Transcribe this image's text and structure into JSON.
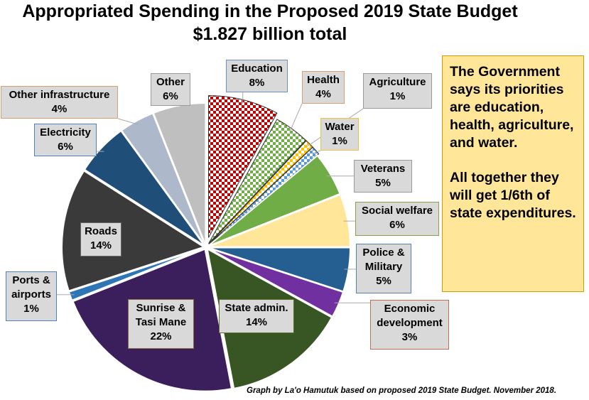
{
  "chart_data": {
    "type": "pie",
    "title": "Appropriated Spending in the Proposed 2019 State Budget",
    "subtitle": "$1.827 billion total",
    "slices": [
      {
        "label": "Education",
        "pct": "8%",
        "value": 8,
        "color": "#c00000",
        "pattern": "checker"
      },
      {
        "label": "Health",
        "pct": "4%",
        "value": 4,
        "color": "#70ad47",
        "pattern": "checker"
      },
      {
        "label": "Agriculture",
        "pct": "1%",
        "value": 1,
        "color": "#ffc000",
        "pattern": "checker"
      },
      {
        "label": "Water",
        "pct": "1%",
        "value": 1,
        "color": "#5b9bd5",
        "pattern": "checker"
      },
      {
        "label": "Veterans",
        "pct": "5%",
        "value": 5,
        "color": "#70ad47"
      },
      {
        "label": "Social welfare",
        "pct": "6%",
        "value": 6,
        "color": "#ffe699"
      },
      {
        "label": "Police & Military",
        "pct": "5%",
        "value": 5,
        "color": "#255e91"
      },
      {
        "label": "Economic development",
        "pct": "3%",
        "value": 3,
        "color": "#7030a0"
      },
      {
        "label": "State admin.",
        "pct": "14%",
        "value": 14,
        "color": "#375623"
      },
      {
        "label": "Sunrise & Tasi Mane",
        "pct": "22%",
        "value": 22,
        "color": "#3b1f5c"
      },
      {
        "label": "Ports & airports",
        "pct": "1%",
        "value": 1,
        "color": "#2e75b6"
      },
      {
        "label": "Roads",
        "pct": "14%",
        "value": 14,
        "color": "#3a3a3a"
      },
      {
        "label": "Electricity",
        "pct": "6%",
        "value": 6,
        "color": "#1f4e79"
      },
      {
        "label": "Other infrastructure",
        "pct": "4%",
        "value": 4,
        "color": "#adb9ca"
      },
      {
        "label": "Other",
        "pct": "6%",
        "value": 6,
        "color": "#bfbfbf"
      }
    ]
  },
  "note": {
    "p1": "The Government says its priorities are education, health, agriculture, and water.",
    "p2": "All together they will get 1/6th of state expenditures."
  },
  "footer": "Graph by La'o Hamutuk based on proposed 2019  State Budget. November 2018."
}
